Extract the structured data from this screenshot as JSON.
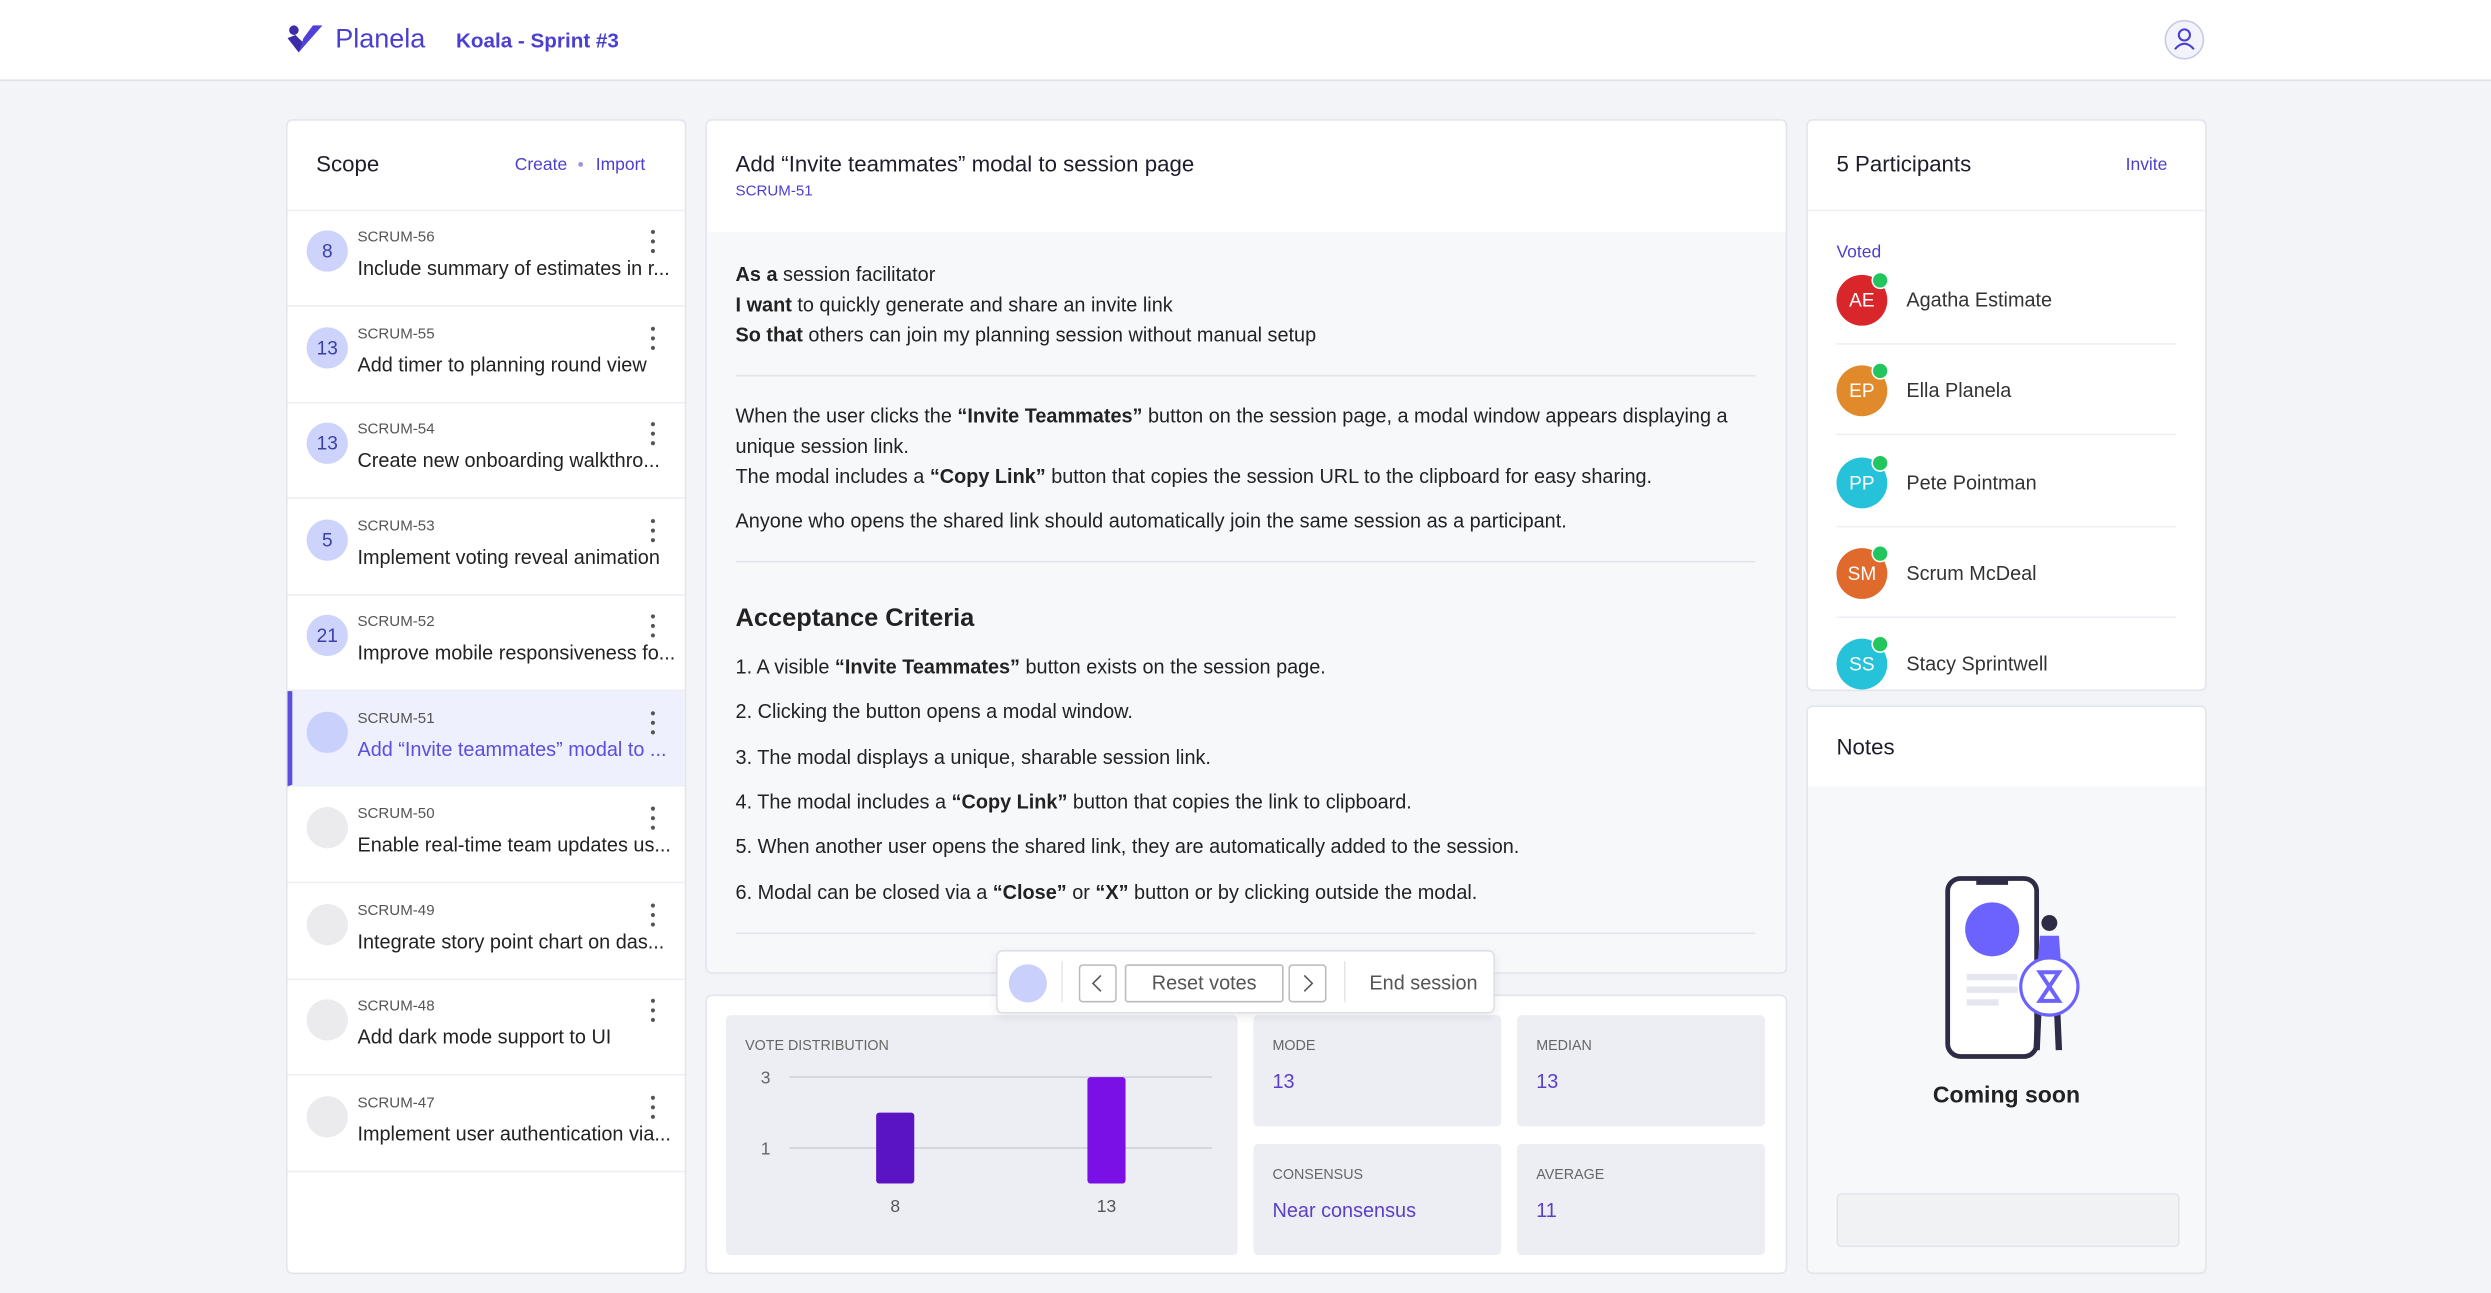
{
  "header": {
    "logo": "Planela",
    "session": "Koala - Sprint #3"
  },
  "scope": {
    "title": "Scope",
    "actions": [
      "Create",
      "Import"
    ],
    "selected": 5,
    "items": [
      {
        "points": 8,
        "key": "SCRUM-56",
        "title": "Include summary of estimates in r..."
      },
      {
        "points": 13,
        "key": "SCRUM-55",
        "title": "Add timer to planning round view"
      },
      {
        "points": 13,
        "key": "SCRUM-54",
        "title": "Create new onboarding walkthro..."
      },
      {
        "points": 5,
        "key": "SCRUM-53",
        "title": "Implement voting reveal animation"
      },
      {
        "points": 21,
        "key": "SCRUM-52",
        "title": "Improve mobile responsiveness fo..."
      },
      {
        "points": null,
        "key": "SCRUM-51",
        "title": "Add “Invite teammates” modal to ..."
      },
      {
        "points": null,
        "key": "SCRUM-50",
        "title": "Enable real-time team updates us..."
      },
      {
        "points": null,
        "key": "SCRUM-49",
        "title": "Integrate story point chart on das..."
      },
      {
        "points": null,
        "key": "SCRUM-48",
        "title": "Add dark mode support to UI"
      },
      {
        "points": null,
        "key": "SCRUM-47",
        "title": "Implement user authentication via..."
      }
    ]
  },
  "story": {
    "title": "Add “Invite teammates” modal to session page",
    "key": "SCRUM-51",
    "user_story": [
      [
        {
          "text": "As a",
          "bold": true
        },
        {
          "text": " session facilitator",
          "bold": false
        }
      ],
      [
        {
          "text": "I want",
          "bold": true
        },
        {
          "text": " to quickly generate and share an invite link",
          "bold": false
        }
      ],
      [
        {
          "text": "So that",
          "bold": true
        },
        {
          "text": " others can join my planning session without manual setup",
          "bold": false
        }
      ]
    ],
    "description": [
      [
        {
          "text": "When the user clicks the ",
          "bold": false
        },
        {
          "text": "“Invite Teammates”",
          "bold": true
        },
        {
          "text": " button on the session page, a modal window appears displaying a unique session link.",
          "bold": false
        }
      ],
      [
        {
          "text": "The modal includes a ",
          "bold": false
        },
        {
          "text": "“Copy Link”",
          "bold": true
        },
        {
          "text": " button that copies the session URL to the clipboard for easy sharing.",
          "bold": false
        }
      ],
      [
        {
          "text": "Anyone who opens the shared link should automatically join the same session as a participant.",
          "bold": false
        }
      ]
    ],
    "ac_title": "Acceptance Criteria",
    "criteria": [
      [
        {
          "text": "1. A visible ",
          "bold": false
        },
        {
          "text": "“Invite Teammates”",
          "bold": true
        },
        {
          "text": " button exists on the session page.",
          "bold": false
        }
      ],
      [
        {
          "text": "2. Clicking the button opens a modal window.",
          "bold": false
        }
      ],
      [
        {
          "text": "3. The modal displays a unique, sharable session link.",
          "bold": false
        }
      ],
      [
        {
          "text": "4. The modal includes a ",
          "bold": false
        },
        {
          "text": "“Copy Link”",
          "bold": true
        },
        {
          "text": " button that copies the link to clipboard.",
          "bold": false
        }
      ],
      [
        {
          "text": "5. When another user opens the shared link, they are automatically added to the session.",
          "bold": false
        }
      ],
      [
        {
          "text": "6. Modal can be closed via a ",
          "bold": false
        },
        {
          "text": "“Close”",
          "bold": true
        },
        {
          "text": " or ",
          "bold": false
        },
        {
          "text": "“X”",
          "bold": true
        },
        {
          "text": " button or by clicking outside the modal.",
          "bold": false
        }
      ]
    ]
  },
  "controls": {
    "reset": "Reset votes",
    "end": "End session"
  },
  "stats": {
    "vote_distribution": {
      "type": "bar",
      "title": "VOTE DISTRIBUTION",
      "categories": [
        "8",
        "13"
      ],
      "values": [
        2,
        3
      ],
      "ylim": [
        0,
        3
      ],
      "yticks": [
        1,
        3
      ],
      "colors": [
        "#5b14c4",
        "#7a0fe6"
      ],
      "grid": true
    },
    "cards": [
      {
        "label": "MODE",
        "value": 13
      },
      {
        "label": "MEDIAN",
        "value": 13
      },
      {
        "label": "CONSENSUS",
        "value": "Near consensus"
      },
      {
        "label": "AVERAGE",
        "value": 11
      }
    ]
  },
  "participants": {
    "title": "5 Participants",
    "action": "Invite",
    "group": "Voted",
    "people": [
      {
        "initials": "AE",
        "name": "Agatha Estimate",
        "color": "#d9262b"
      },
      {
        "initials": "EP",
        "name": "Ella Planela",
        "color": "#e08a2c"
      },
      {
        "initials": "PP",
        "name": "Pete Pointman",
        "color": "#26c2d9"
      },
      {
        "initials": "SM",
        "name": "Scrum McDeal",
        "color": "#e0692c"
      },
      {
        "initials": "SS",
        "name": "Stacy Sprintwell",
        "color": "#26c2d9"
      }
    ]
  },
  "notes": {
    "title": "Notes",
    "empty": "Coming soon"
  }
}
